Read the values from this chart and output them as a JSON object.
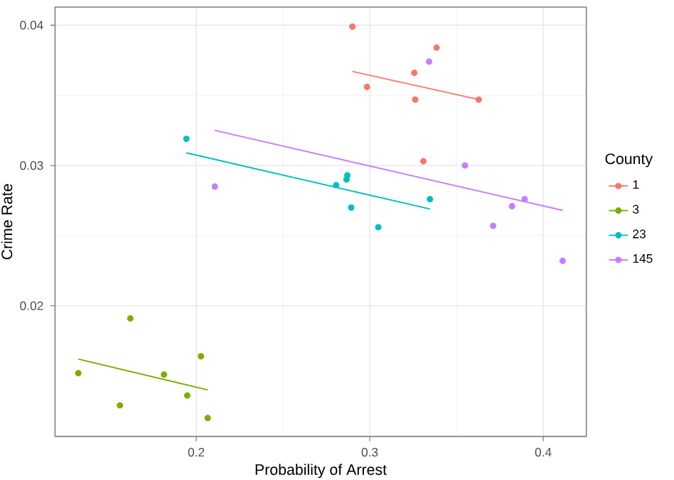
{
  "chart_data": {
    "type": "scatter",
    "xlabel": "Probability of Arrest",
    "ylabel": "Crime Rate",
    "legend_title": "County",
    "legend": "right",
    "grid": true,
    "marker": "circle",
    "xlim": [
      0.1186,
      0.4248
    ],
    "ylim": [
      0.01069,
      0.04129
    ],
    "xticks": [
      0.2,
      0.3,
      0.4
    ],
    "yticks": [
      0.02,
      0.03,
      0.04
    ],
    "series": [
      {
        "name": "1",
        "color": "#f8766d",
        "x": [
          0.29,
          0.3385,
          0.3257,
          0.2984,
          0.3262,
          0.3628,
          0.3309
        ],
        "values": [
          0.0399,
          0.0384,
          0.0366,
          0.0356,
          0.0347,
          0.0347,
          0.0303
        ]
      },
      {
        "name": "3",
        "color": "#7cae00",
        "x": [
          0.132,
          0.162,
          0.156,
          0.1814,
          0.1948,
          0.2027,
          0.2066
        ],
        "values": [
          0.0152,
          0.0191,
          0.0129,
          0.0151,
          0.0136,
          0.0164,
          0.012
        ]
      },
      {
        "name": "23",
        "color": "#00bfc4",
        "x": [
          0.1943,
          0.2806,
          0.2866,
          0.2871,
          0.2893,
          0.3049,
          0.3347
        ],
        "values": [
          0.0319,
          0.0286,
          0.029,
          0.0293,
          0.027,
          0.0256,
          0.0276
        ]
      },
      {
        "name": "145",
        "color": "#c77cff",
        "x": [
          0.2107,
          0.3342,
          0.3549,
          0.382,
          0.3893,
          0.3711,
          0.4112
        ],
        "values": [
          0.0285,
          0.0374,
          0.03,
          0.0271,
          0.0276,
          0.0257,
          0.0232
        ]
      },
      {
        "type": "line",
        "marker": "none",
        "color": "#f8766d",
        "x": [
          0.29,
          0.3628
        ],
        "values": [
          0.0367,
          0.0347
        ]
      },
      {
        "type": "line",
        "marker": "none",
        "color": "#7cae00",
        "x": [
          0.132,
          0.2066
        ],
        "values": [
          0.0162,
          0.014
        ]
      },
      {
        "type": "line",
        "marker": "none",
        "color": "#00bfc4",
        "x": [
          0.1943,
          0.3347
        ],
        "values": [
          0.0309,
          0.0269
        ]
      },
      {
        "type": "line",
        "marker": "none",
        "color": "#c77cff",
        "x": [
          0.2107,
          0.4112
        ],
        "values": [
          0.0325,
          0.0268
        ]
      }
    ]
  }
}
